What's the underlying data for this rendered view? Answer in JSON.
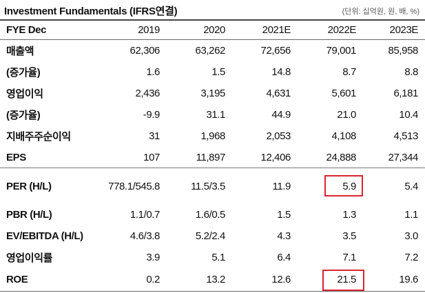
{
  "title": "Investment Fundamentals (IFRS연결)",
  "unit": "(단위: 십억원, 원, 배, %)",
  "header": {
    "label": "FYE Dec",
    "years": [
      "2019",
      "2020",
      "2021E",
      "2022E",
      "2023E"
    ]
  },
  "rows": [
    {
      "label": "매출액",
      "values": [
        "62,306",
        "63,262",
        "72,656",
        "79,001",
        "85,958"
      ]
    },
    {
      "label": "(증가율)",
      "values": [
        "1.6",
        "1.5",
        "14.8",
        "8.7",
        "8.8"
      ]
    },
    {
      "label": "영업이익",
      "values": [
        "2,436",
        "3,195",
        "4,631",
        "5,601",
        "6,181"
      ]
    },
    {
      "label": "(증가율)",
      "values": [
        "-9.9",
        "31.1",
        "44.9",
        "21.0",
        "10.4"
      ]
    },
    {
      "label": "지배주주순이익",
      "values": [
        "31",
        "1,968",
        "2,053",
        "4,108",
        "4,513"
      ]
    },
    {
      "label": "EPS",
      "values": [
        "107",
        "11,897",
        "12,406",
        "24,888",
        "27,344"
      ]
    },
    {
      "label": "PER (H/L)",
      "values": [
        "778.1/545.8",
        "11.5/3.5",
        "11.9",
        "5.9",
        "5.4"
      ]
    },
    {
      "label": "PBR (H/L)",
      "values": [
        "1.1/0.7",
        "1.6/0.5",
        "1.5",
        "1.3",
        "1.1"
      ]
    },
    {
      "label": "EV/EBITDA (H/L)",
      "values": [
        "4.6/3.8",
        "5.2/2.4",
        "4.3",
        "3.5",
        "3.0"
      ]
    },
    {
      "label": "영업이익률",
      "values": [
        "3.9",
        "5.1",
        "6.4",
        "7.1",
        "7.2"
      ]
    },
    {
      "label": "ROE",
      "values": [
        "0.2",
        "13.2",
        "12.6",
        "21.5",
        "19.6"
      ]
    }
  ],
  "highlight_color": "#d9232d"
}
